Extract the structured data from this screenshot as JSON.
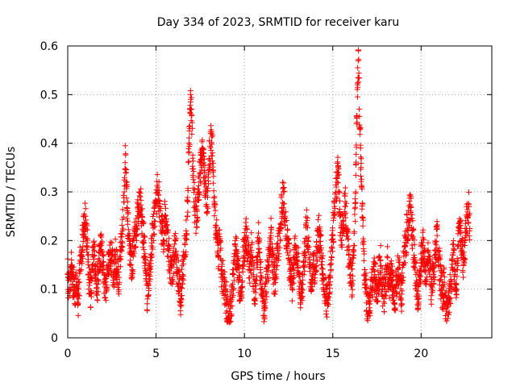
{
  "chart_data": {
    "type": "scatter",
    "title": "Day 334 of 2023, SRMTID for receiver karu",
    "xlabel": "GPS time / hours",
    "ylabel": "SRMTID / TECUs",
    "xlim": [
      0,
      24
    ],
    "ylim": [
      0,
      0.6
    ],
    "xticks": [
      0,
      5,
      10,
      15,
      20
    ],
    "yticks": [
      0,
      0.1,
      0.2,
      0.3,
      0.4,
      0.5,
      0.6
    ],
    "grid": true,
    "marker": "+",
    "color": "#ff0000",
    "x_range_data": [
      0,
      22.75
    ],
    "samples": [
      [
        0.0,
        0.13
      ],
      [
        0.1,
        0.1
      ],
      [
        0.2,
        0.15
      ],
      [
        0.3,
        0.12
      ],
      [
        0.4,
        0.09
      ],
      [
        0.5,
        0.11
      ],
      [
        0.6,
        0.08
      ],
      [
        0.7,
        0.16
      ],
      [
        0.8,
        0.18
      ],
      [
        0.9,
        0.22
      ],
      [
        1.0,
        0.25
      ],
      [
        1.1,
        0.2
      ],
      [
        1.2,
        0.12
      ],
      [
        1.3,
        0.09
      ],
      [
        1.4,
        0.15
      ],
      [
        1.5,
        0.17
      ],
      [
        1.6,
        0.13
      ],
      [
        1.7,
        0.11
      ],
      [
        1.8,
        0.16
      ],
      [
        1.9,
        0.19
      ],
      [
        2.0,
        0.14
      ],
      [
        2.1,
        0.12
      ],
      [
        2.2,
        0.1
      ],
      [
        2.3,
        0.15
      ],
      [
        2.4,
        0.18
      ],
      [
        2.5,
        0.16
      ],
      [
        2.6,
        0.13
      ],
      [
        2.7,
        0.17
      ],
      [
        2.8,
        0.14
      ],
      [
        2.9,
        0.11
      ],
      [
        3.0,
        0.18
      ],
      [
        3.1,
        0.22
      ],
      [
        3.2,
        0.3
      ],
      [
        3.25,
        0.36
      ],
      [
        3.3,
        0.34
      ],
      [
        3.4,
        0.24
      ],
      [
        3.5,
        0.19
      ],
      [
        3.6,
        0.15
      ],
      [
        3.7,
        0.17
      ],
      [
        3.8,
        0.21
      ],
      [
        3.9,
        0.23
      ],
      [
        4.0,
        0.26
      ],
      [
        4.1,
        0.29
      ],
      [
        4.2,
        0.24
      ],
      [
        4.3,
        0.2
      ],
      [
        4.4,
        0.16
      ],
      [
        4.5,
        0.07
      ],
      [
        4.6,
        0.13
      ],
      [
        4.7,
        0.17
      ],
      [
        4.8,
        0.21
      ],
      [
        4.9,
        0.24
      ],
      [
        5.0,
        0.28
      ],
      [
        5.1,
        0.31
      ],
      [
        5.2,
        0.27
      ],
      [
        5.3,
        0.23
      ],
      [
        5.4,
        0.2
      ],
      [
        5.5,
        0.25
      ],
      [
        5.6,
        0.22
      ],
      [
        5.7,
        0.18
      ],
      [
        5.8,
        0.15
      ],
      [
        5.9,
        0.12
      ],
      [
        6.0,
        0.16
      ],
      [
        6.1,
        0.2
      ],
      [
        6.2,
        0.14
      ],
      [
        6.3,
        0.11
      ],
      [
        6.4,
        0.08
      ],
      [
        6.5,
        0.13
      ],
      [
        6.6,
        0.17
      ],
      [
        6.7,
        0.22
      ],
      [
        6.8,
        0.28
      ],
      [
        6.85,
        0.38
      ],
      [
        6.9,
        0.43
      ],
      [
        6.95,
        0.5
      ],
      [
        7.0,
        0.47
      ],
      [
        7.1,
        0.33
      ],
      [
        7.2,
        0.26
      ],
      [
        7.3,
        0.24
      ],
      [
        7.4,
        0.3
      ],
      [
        7.5,
        0.34
      ],
      [
        7.6,
        0.39
      ],
      [
        7.7,
        0.36
      ],
      [
        7.8,
        0.31
      ],
      [
        7.9,
        0.27
      ],
      [
        8.0,
        0.35
      ],
      [
        8.1,
        0.42
      ],
      [
        8.2,
        0.38
      ],
      [
        8.3,
        0.28
      ],
      [
        8.4,
        0.22
      ],
      [
        8.5,
        0.17
      ],
      [
        8.6,
        0.2
      ],
      [
        8.7,
        0.14
      ],
      [
        8.8,
        0.12
      ],
      [
        8.9,
        0.1
      ],
      [
        9.0,
        0.07
      ],
      [
        9.1,
        0.04
      ],
      [
        9.2,
        0.06
      ],
      [
        9.3,
        0.09
      ],
      [
        9.4,
        0.13
      ],
      [
        9.5,
        0.18
      ],
      [
        9.6,
        0.16
      ],
      [
        9.7,
        0.12
      ],
      [
        9.8,
        0.09
      ],
      [
        9.9,
        0.15
      ],
      [
        10.0,
        0.19
      ],
      [
        10.1,
        0.21
      ],
      [
        10.2,
        0.17
      ],
      [
        10.3,
        0.14
      ],
      [
        10.4,
        0.18
      ],
      [
        10.5,
        0.13
      ],
      [
        10.6,
        0.1
      ],
      [
        10.7,
        0.16
      ],
      [
        10.8,
        0.2
      ],
      [
        10.9,
        0.14
      ],
      [
        11.0,
        0.11
      ],
      [
        11.1,
        0.06
      ],
      [
        11.2,
        0.09
      ],
      [
        11.3,
        0.13
      ],
      [
        11.4,
        0.17
      ],
      [
        11.5,
        0.21
      ],
      [
        11.6,
        0.15
      ],
      [
        11.7,
        0.12
      ],
      [
        11.8,
        0.14
      ],
      [
        11.9,
        0.18
      ],
      [
        12.0,
        0.22
      ],
      [
        12.1,
        0.26
      ],
      [
        12.2,
        0.3
      ],
      [
        12.3,
        0.25
      ],
      [
        12.4,
        0.2
      ],
      [
        12.5,
        0.17
      ],
      [
        12.6,
        0.14
      ],
      [
        12.7,
        0.11
      ],
      [
        12.8,
        0.15
      ],
      [
        12.9,
        0.19
      ],
      [
        13.0,
        0.16
      ],
      [
        13.1,
        0.13
      ],
      [
        13.2,
        0.08
      ],
      [
        13.3,
        0.11
      ],
      [
        13.4,
        0.17
      ],
      [
        13.5,
        0.23
      ],
      [
        13.6,
        0.2
      ],
      [
        13.7,
        0.15
      ],
      [
        13.8,
        0.12
      ],
      [
        13.9,
        0.16
      ],
      [
        14.0,
        0.13
      ],
      [
        14.1,
        0.18
      ],
      [
        14.2,
        0.22
      ],
      [
        14.3,
        0.19
      ],
      [
        14.4,
        0.15
      ],
      [
        14.5,
        0.12
      ],
      [
        14.6,
        0.09
      ],
      [
        14.7,
        0.07
      ],
      [
        14.8,
        0.11
      ],
      [
        14.9,
        0.16
      ],
      [
        15.0,
        0.21
      ],
      [
        15.1,
        0.27
      ],
      [
        15.2,
        0.31
      ],
      [
        15.3,
        0.35
      ],
      [
        15.4,
        0.25
      ],
      [
        15.5,
        0.2
      ],
      [
        15.6,
        0.24
      ],
      [
        15.7,
        0.28
      ],
      [
        15.8,
        0.22
      ],
      [
        15.9,
        0.17
      ],
      [
        16.0,
        0.13
      ],
      [
        16.1,
        0.11
      ],
      [
        16.2,
        0.19
      ],
      [
        16.3,
        0.3
      ],
      [
        16.35,
        0.44
      ],
      [
        16.4,
        0.52
      ],
      [
        16.45,
        0.59
      ],
      [
        16.5,
        0.47
      ],
      [
        16.6,
        0.35
      ],
      [
        16.7,
        0.23
      ],
      [
        16.8,
        0.14
      ],
      [
        16.9,
        0.09
      ],
      [
        17.0,
        0.05
      ],
      [
        17.1,
        0.07
      ],
      [
        17.2,
        0.1
      ],
      [
        17.3,
        0.14
      ],
      [
        17.4,
        0.12
      ],
      [
        17.5,
        0.09
      ],
      [
        17.6,
        0.13
      ],
      [
        17.7,
        0.16
      ],
      [
        17.8,
        0.11
      ],
      [
        17.9,
        0.08
      ],
      [
        18.0,
        0.12
      ],
      [
        18.1,
        0.15
      ],
      [
        18.2,
        0.11
      ],
      [
        18.3,
        0.13
      ],
      [
        18.4,
        0.1
      ],
      [
        18.5,
        0.07
      ],
      [
        18.6,
        0.11
      ],
      [
        18.7,
        0.14
      ],
      [
        18.8,
        0.12
      ],
      [
        18.9,
        0.09
      ],
      [
        19.0,
        0.15
      ],
      [
        19.1,
        0.19
      ],
      [
        19.2,
        0.22
      ],
      [
        19.3,
        0.24
      ],
      [
        19.4,
        0.27
      ],
      [
        19.5,
        0.22
      ],
      [
        19.6,
        0.17
      ],
      [
        19.7,
        0.13
      ],
      [
        19.8,
        0.09
      ],
      [
        19.9,
        0.12
      ],
      [
        20.0,
        0.16
      ],
      [
        20.1,
        0.19
      ],
      [
        20.2,
        0.15
      ],
      [
        20.3,
        0.12
      ],
      [
        20.4,
        0.18
      ],
      [
        20.5,
        0.14
      ],
      [
        20.6,
        0.1
      ],
      [
        20.7,
        0.13
      ],
      [
        20.8,
        0.17
      ],
      [
        20.9,
        0.21
      ],
      [
        21.0,
        0.16
      ],
      [
        21.1,
        0.12
      ],
      [
        21.2,
        0.09
      ],
      [
        21.3,
        0.11
      ],
      [
        21.4,
        0.07
      ],
      [
        21.5,
        0.05
      ],
      [
        21.6,
        0.08
      ],
      [
        21.7,
        0.12
      ],
      [
        21.8,
        0.17
      ],
      [
        21.9,
        0.14
      ],
      [
        22.0,
        0.11
      ],
      [
        22.1,
        0.19
      ],
      [
        22.2,
        0.23
      ],
      [
        22.3,
        0.18
      ],
      [
        22.4,
        0.15
      ],
      [
        22.5,
        0.2
      ],
      [
        22.6,
        0.25
      ],
      [
        22.7,
        0.27
      ],
      [
        22.75,
        0.22
      ]
    ]
  }
}
